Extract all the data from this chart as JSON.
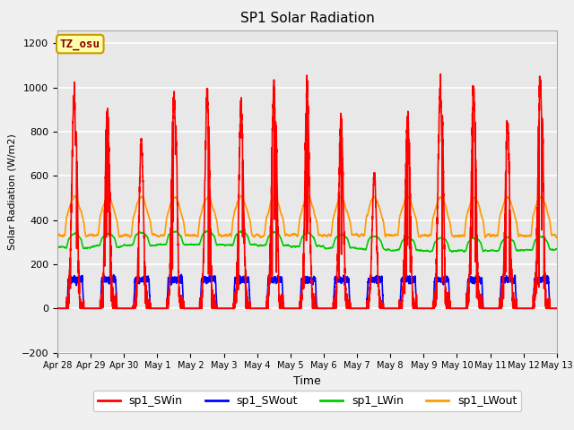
{
  "title": "SP1 Solar Radiation",
  "xlabel": "Time",
  "ylabel": "Solar Radiation (W/m2)",
  "ylim": [
    -200,
    1260
  ],
  "yticks": [
    -200,
    0,
    200,
    400,
    600,
    800,
    1000,
    1200
  ],
  "plot_bg_color": "#e8e8e8",
  "fig_bg_color": "#f0f0f0",
  "grid_color": "white",
  "series_colors": {
    "sp1_SWin": "#ff0000",
    "sp1_SWout": "#0000ff",
    "sp1_LWin": "#00cc00",
    "sp1_LWout": "#ff9900"
  },
  "x_tick_labels": [
    "Apr 28",
    "Apr 29",
    "Apr 30",
    "May 1",
    "May 2",
    "May 3",
    "May 4",
    "May 5",
    "May 6",
    "May 7",
    "May 8",
    "May 9",
    "May 10",
    "May 11",
    "May 12",
    "May 13"
  ],
  "x_tick_positions": [
    0,
    1,
    2,
    3,
    4,
    5,
    6,
    7,
    8,
    9,
    10,
    11,
    12,
    13,
    14,
    15
  ],
  "annotation_text": "TZ_osu",
  "annotation_bg": "#ffffaa",
  "annotation_border": "#cc9900",
  "annotation_text_color": "#880000",
  "lw": 1.2
}
